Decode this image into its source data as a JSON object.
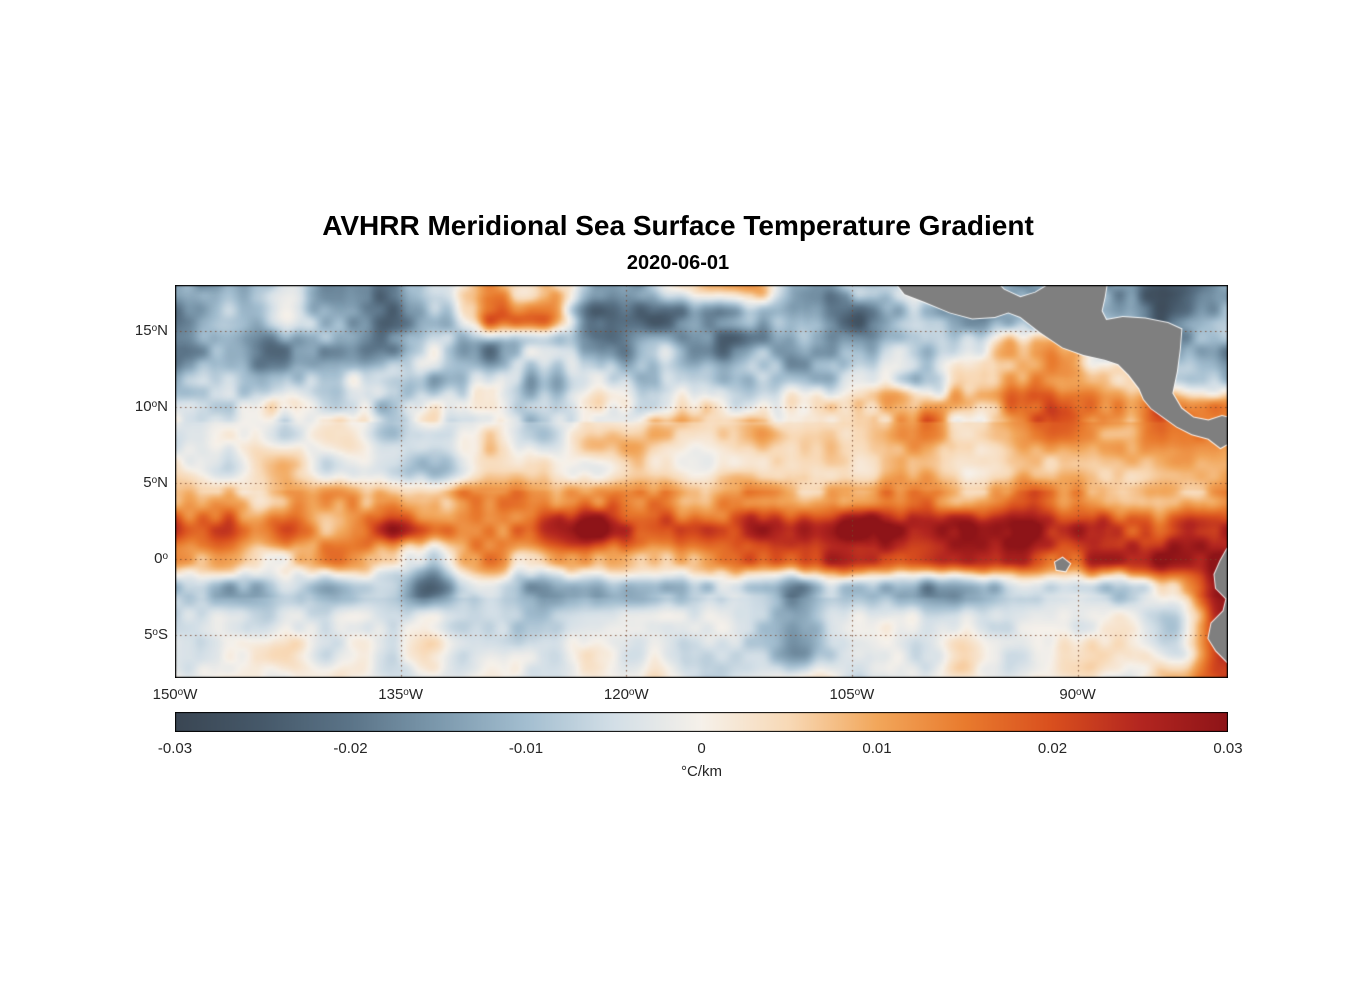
{
  "chart_data": {
    "type": "heatmap",
    "title": "AVHRR Meridional Sea Surface Temperature Gradient",
    "subtitle": "2020-06-01",
    "lon_range": [
      -150,
      -80
    ],
    "lat_range": [
      -7.8,
      18.0
    ],
    "x_axis": {
      "ticks": [
        {
          "num": "150",
          "sup": "o",
          "dir": "W",
          "lon": -150
        },
        {
          "num": "135",
          "sup": "o",
          "dir": "W",
          "lon": -135
        },
        {
          "num": "120",
          "sup": "o",
          "dir": "W",
          "lon": -120
        },
        {
          "num": "105",
          "sup": "o",
          "dir": "W",
          "lon": -105
        },
        {
          "num": "90",
          "sup": "o",
          "dir": "W",
          "lon": -90
        }
      ]
    },
    "y_axis": {
      "ticks": [
        {
          "num": "15",
          "sup": "o",
          "dir": "N",
          "lat": 15
        },
        {
          "num": "10",
          "sup": "o",
          "dir": "N",
          "lat": 10
        },
        {
          "num": "5",
          "sup": "o",
          "dir": "N",
          "lat": 5
        },
        {
          "num": "0",
          "sup": "o",
          "dir": "",
          "lat": 0
        },
        {
          "num": "5",
          "sup": "o",
          "dir": "S",
          "lat": -5
        }
      ]
    },
    "colorbar": {
      "label": "°C/km",
      "min": -0.03,
      "max": 0.03,
      "ticks": [
        "-0.03",
        "-0.02",
        "-0.01",
        "0",
        "0.01",
        "0.02",
        "0.03"
      ],
      "tick_values": [
        -0.03,
        -0.02,
        -0.01,
        0,
        0.01,
        0.02,
        0.03
      ]
    },
    "colormap": {
      "values": [
        -0.03,
        -0.025,
        -0.02,
        -0.015,
        -0.01,
        -0.005,
        0,
        0.005,
        0.01,
        0.015,
        0.02,
        0.025,
        0.03
      ],
      "colors": [
        "#3a4653",
        "#46596a",
        "#5b7488",
        "#7c99ad",
        "#a3bed0",
        "#d3dfe7",
        "#f6f1ea",
        "#f8d9b6",
        "#f2a75b",
        "#e97b2e",
        "#d94f1e",
        "#b32620",
        "#8e1418"
      ]
    },
    "grid": {
      "lons": [
        -150,
        -146.5,
        -143,
        -139.5,
        -136,
        -132.5,
        -129,
        -125.5,
        -122,
        -118.5,
        -115,
        -111.5,
        -108,
        -104.5,
        -101,
        -97.5,
        -94,
        -90.5,
        -87,
        -83.5,
        -80
      ],
      "lats": [
        -8,
        -6,
        -4,
        -2,
        0,
        2,
        4,
        6,
        8,
        10,
        12,
        14,
        16,
        18
      ],
      "values": [
        [
          -0.002,
          0.001,
          -0.003,
          0.002,
          -0.004,
          -0.002,
          0.003,
          -0.005,
          -0.002,
          0.004,
          -0.006,
          -0.003,
          0.002,
          -0.004,
          -0.002,
          0.003,
          -0.002,
          0.004,
          -0.003,
          0.01,
          0.022
        ],
        [
          -0.003,
          -0.001,
          0.002,
          -0.004,
          -0.002,
          0.003,
          -0.004,
          -0.006,
          0.002,
          -0.003,
          -0.004,
          -0.006,
          -0.015,
          -0.002,
          -0.005,
          0.002,
          -0.003,
          0.003,
          0.005,
          -0.008,
          0.025
        ],
        [
          -0.004,
          -0.002,
          -0.005,
          -0.003,
          -0.006,
          -0.002,
          -0.005,
          -0.008,
          -0.003,
          -0.005,
          -0.002,
          -0.006,
          -0.012,
          -0.004,
          -0.002,
          -0.005,
          -0.003,
          -0.002,
          0.004,
          -0.01,
          0.028
        ],
        [
          -0.008,
          -0.012,
          -0.006,
          -0.015,
          -0.01,
          -0.018,
          -0.008,
          -0.014,
          -0.01,
          -0.016,
          -0.012,
          -0.008,
          -0.015,
          -0.01,
          -0.012,
          -0.018,
          -0.01,
          -0.008,
          -0.014,
          0.005,
          0.03
        ],
        [
          0.012,
          0.006,
          -0.004,
          0.015,
          0.008,
          -0.005,
          0.012,
          0.005,
          0.01,
          0.004,
          0.015,
          0.02,
          0.018,
          0.025,
          0.022,
          0.028,
          0.025,
          0.02,
          0.028,
          0.03,
          0.03
        ],
        [
          0.02,
          0.015,
          0.022,
          0.012,
          0.025,
          0.018,
          0.015,
          0.022,
          0.028,
          0.02,
          0.025,
          0.022,
          0.028,
          0.03,
          0.025,
          0.028,
          0.03,
          0.025,
          0.022,
          0.025,
          0.02
        ],
        [
          0.008,
          0.012,
          0.006,
          0.015,
          0.01,
          0.006,
          0.018,
          0.008,
          0.015,
          0.01,
          0.008,
          0.012,
          0.01,
          0.015,
          0.012,
          0.01,
          0.015,
          0.012,
          0.008,
          0.01,
          0.012
        ],
        [
          0.003,
          -0.004,
          0.006,
          -0.003,
          -0.008,
          -0.012,
          0.004,
          0.003,
          -0.004,
          0.005,
          0.002,
          0.006,
          0.003,
          0.005,
          0.008,
          0.004,
          0.006,
          0.008,
          0.005,
          0.01,
          0.008
        ],
        [
          -0.004,
          0.003,
          -0.006,
          0.004,
          -0.008,
          -0.004,
          0.003,
          -0.006,
          0.01,
          0.008,
          0.003,
          0.01,
          0.006,
          0.006,
          0.012,
          0.008,
          0.012,
          0.015,
          0.01,
          0.015,
          0.012
        ],
        [
          -0.006,
          -0.003,
          0.004,
          -0.005,
          -0.008,
          0.003,
          -0.006,
          -0.003,
          0.005,
          -0.004,
          0.003,
          -0.005,
          0.004,
          0.006,
          0.01,
          0.008,
          0.015,
          0.022,
          0.018,
          0.015,
          0.01
        ],
        [
          -0.01,
          -0.005,
          -0.012,
          -0.006,
          -0.003,
          -0.01,
          -0.005,
          -0.012,
          -0.006,
          -0.01,
          -0.004,
          -0.008,
          -0.012,
          -0.005,
          -0.008,
          -0.004,
          0.006,
          0.012,
          0.008,
          -0.006,
          -0.01
        ],
        [
          -0.015,
          -0.008,
          -0.018,
          -0.01,
          -0.02,
          -0.008,
          -0.015,
          -0.01,
          -0.018,
          -0.008,
          -0.012,
          -0.018,
          -0.01,
          -0.015,
          -0.008,
          -0.012,
          0.008,
          0.004,
          -0.01,
          -0.015,
          -0.012
        ],
        [
          -0.02,
          -0.012,
          -0.006,
          -0.018,
          -0.022,
          -0.01,
          0.014,
          0.018,
          -0.018,
          -0.02,
          -0.015,
          -0.005,
          -0.018,
          -0.022,
          -0.012,
          -0.018,
          -0.01,
          -0.006,
          -0.015,
          -0.02,
          -0.018
        ],
        [
          -0.01,
          -0.015,
          -0.008,
          -0.012,
          -0.018,
          -0.006,
          0.008,
          0.012,
          -0.01,
          -0.015,
          0.012,
          0.016,
          -0.012,
          -0.008,
          -0.005,
          -0.004,
          -0.008,
          -0.012,
          -0.018,
          -0.022,
          -0.015
        ]
      ]
    },
    "land_color": "#7f7f7f",
    "land_polygons": {
      "central_america": [
        [
          -102.3,
          18.4
        ],
        [
          -101.5,
          17.4
        ],
        [
          -100.2,
          16.9
        ],
        [
          -98.5,
          16.2
        ],
        [
          -97.0,
          15.8
        ],
        [
          -95.5,
          15.9
        ],
        [
          -94.6,
          16.2
        ],
        [
          -93.8,
          15.9
        ],
        [
          -92.5,
          14.9
        ],
        [
          -91.0,
          13.9
        ],
        [
          -89.6,
          13.4
        ],
        [
          -88.2,
          13.1
        ],
        [
          -87.3,
          12.8
        ],
        [
          -86.6,
          12.1
        ],
        [
          -85.9,
          11.2
        ],
        [
          -85.6,
          10.5
        ],
        [
          -85.1,
          9.9
        ],
        [
          -84.4,
          9.4
        ],
        [
          -83.4,
          8.7
        ],
        [
          -82.4,
          8.2
        ],
        [
          -81.3,
          7.9
        ],
        [
          -80.5,
          7.3
        ],
        [
          -79.6,
          7.8
        ],
        [
          -79.6,
          9.2
        ],
        [
          -80.4,
          9.4
        ],
        [
          -81.3,
          9.1
        ],
        [
          -82.3,
          9.3
        ],
        [
          -83.1,
          9.9
        ],
        [
          -83.7,
          10.9
        ],
        [
          -83.4,
          12.3
        ],
        [
          -83.2,
          13.8
        ],
        [
          -83.1,
          15.1
        ],
        [
          -84.0,
          15.5
        ],
        [
          -85.5,
          15.8
        ],
        [
          -87.0,
          15.9
        ],
        [
          -88.1,
          15.7
        ],
        [
          -88.4,
          16.3
        ],
        [
          -88.2,
          17.2
        ],
        [
          -88.0,
          18.4
        ],
        [
          -90.5,
          18.4
        ],
        [
          -91.8,
          18.1
        ],
        [
          -92.8,
          17.5
        ],
        [
          -93.8,
          17.2
        ],
        [
          -94.9,
          17.7
        ],
        [
          -95.6,
          18.4
        ]
      ],
      "south_america": [
        [
          -79.5,
          1.5
        ],
        [
          -80.1,
          0.6
        ],
        [
          -80.5,
          -0.1
        ],
        [
          -80.9,
          -1.0
        ],
        [
          -80.8,
          -1.9
        ],
        [
          -80.1,
          -2.6
        ],
        [
          -80.3,
          -3.4
        ],
        [
          -81.1,
          -4.2
        ],
        [
          -81.3,
          -5.2
        ],
        [
          -80.8,
          -6.0
        ],
        [
          -80.0,
          -6.8
        ],
        [
          -79.3,
          -7.5
        ],
        [
          -78.9,
          -8.3
        ],
        [
          -78.3,
          -8.5
        ],
        [
          -78.3,
          1.6
        ]
      ],
      "galapagos": [
        [
          -91.5,
          -0.2
        ],
        [
          -91.0,
          0.1
        ],
        [
          -90.5,
          -0.3
        ],
        [
          -90.8,
          -0.8
        ],
        [
          -91.4,
          -0.7
        ]
      ]
    }
  },
  "layout_text": {}
}
